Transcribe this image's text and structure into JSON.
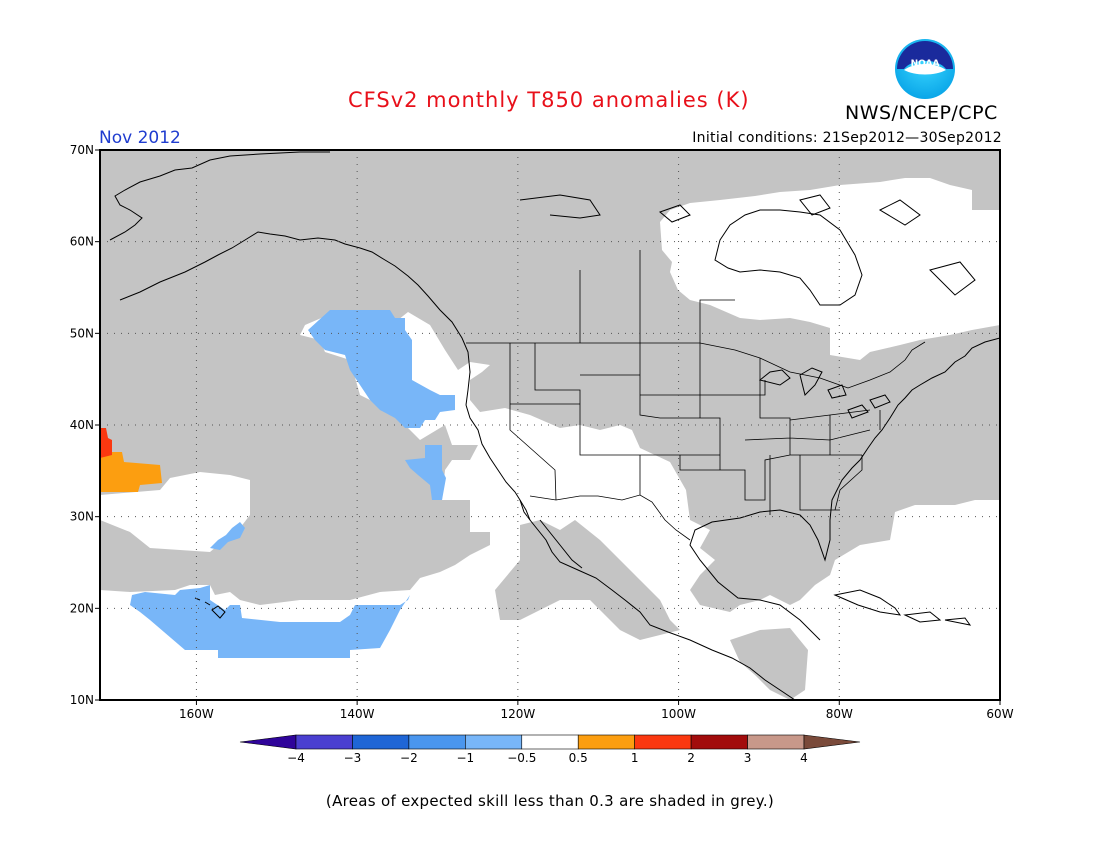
{
  "title": "CFSv2 monthly T850 anomalies (K)",
  "agency": "NWS/NCEP/CPC",
  "logo_text": "NOAA",
  "forecast_month": "Nov 2012",
  "initial_conditions": "Initial conditions: 21Sep2012—30Sep2012",
  "footnote": "(Areas of expected skill less than 0.3 are shaded in grey.)",
  "colors": {
    "title": "#e8101a",
    "month": "#1f3ccf",
    "grey_mask": "#c4c4c4",
    "neg_0_5_to_1": "#78b6f8"
  },
  "map": {
    "lat_labels": [
      "70N",
      "60N",
      "50N",
      "40N",
      "30N",
      "20N",
      "10N"
    ],
    "lon_labels": [
      "160W",
      "140W",
      "120W",
      "100W",
      "80W",
      "60W"
    ],
    "extent": {
      "lon_min": -172,
      "lon_max": -60,
      "lat_min": 10,
      "lat_max": 70
    }
  },
  "colorbar": {
    "colors": [
      "#2f049a",
      "#4a3fd0",
      "#1f66d6",
      "#4a96ee",
      "#78b6f8",
      "#ffffff",
      "#fc9e10",
      "#fb3810",
      "#a20c0c",
      "#c8988a",
      "#7a4a3a"
    ],
    "tick_labels": [
      "−4",
      "−3",
      "−2",
      "−1",
      "−0.5",
      "0.5",
      "1",
      "2",
      "3",
      "4"
    ]
  }
}
